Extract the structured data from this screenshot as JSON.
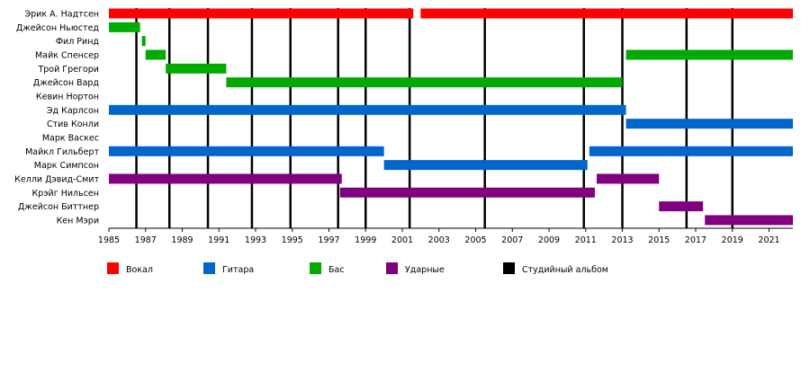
{
  "chart_data": {
    "type": "timeline",
    "title": "",
    "xlabel": "",
    "ylabel": "",
    "xlim": [
      1985,
      2022.3
    ],
    "x_ticks": [
      1985,
      1987,
      1989,
      1991,
      1993,
      1995,
      1997,
      1999,
      2001,
      2003,
      2005,
      2007,
      2009,
      2011,
      2013,
      2015,
      2017,
      2019,
      2021
    ],
    "grid": false,
    "legend_position": "bottom",
    "members": [
      "Эрик А. Надтсен",
      "Джейсон Ньюстед",
      "Фил Ринд",
      "Майк Спенсер",
      "Трой Грегори",
      "Джейсон Вард",
      "Кевин Нортон",
      "Эд Карлсон",
      "Стив Конли",
      "Марк Васкес",
      "Майкл Гильберт",
      "Марк Симпсон",
      "Келли Дэвид-Смит",
      "Крэйг Нильсен",
      "Джейсон Биттнер",
      "Кен Мэри"
    ],
    "roles": [
      {
        "key": "vocals",
        "name": "Вокал",
        "color": "#ff0000"
      },
      {
        "key": "guitar",
        "name": "Гитара",
        "color": "#0066cc"
      },
      {
        "key": "bass",
        "name": "Бас",
        "color": "#00aa00"
      },
      {
        "key": "drums",
        "name": "Ударные",
        "color": "#800080"
      },
      {
        "key": "album",
        "name": "Студийный альбом",
        "color": "#000000"
      }
    ],
    "bars": [
      {
        "member": 0,
        "role": "vocals",
        "start": 1985.0,
        "end": 2001.6
      },
      {
        "member": 0,
        "role": "vocals",
        "start": 2002.0,
        "end": 2022.3
      },
      {
        "member": 1,
        "role": "bass",
        "start": 1985.0,
        "end": 1986.7
      },
      {
        "member": 2,
        "role": "bass",
        "start": 1986.8,
        "end": 1987.0
      },
      {
        "member": 3,
        "role": "bass",
        "start": 1987.0,
        "end": 1988.1
      },
      {
        "member": 3,
        "role": "bass",
        "start": 2013.2,
        "end": 2022.3
      },
      {
        "member": 4,
        "role": "bass",
        "start": 1988.1,
        "end": 1991.4
      },
      {
        "member": 5,
        "role": "bass",
        "start": 1991.4,
        "end": 2013.0
      },
      {
        "member": 7,
        "role": "guitar",
        "start": 1985.0,
        "end": 2013.2
      },
      {
        "member": 8,
        "role": "guitar",
        "start": 2013.2,
        "end": 2022.3
      },
      {
        "member": 10,
        "role": "guitar",
        "start": 1985.0,
        "end": 2000.0
      },
      {
        "member": 10,
        "role": "guitar",
        "start": 2011.2,
        "end": 2022.3
      },
      {
        "member": 11,
        "role": "guitar",
        "start": 2000.0,
        "end": 2011.1
      },
      {
        "member": 12,
        "role": "drums",
        "start": 1985.0,
        "end": 1997.7
      },
      {
        "member": 12,
        "role": "drums",
        "start": 2011.6,
        "end": 2015.0
      },
      {
        "member": 13,
        "role": "drums",
        "start": 1997.6,
        "end": 2011.5
      },
      {
        "member": 14,
        "role": "drums",
        "start": 2015.0,
        "end": 2017.4
      },
      {
        "member": 15,
        "role": "drums",
        "start": 2017.5,
        "end": 2022.3
      }
    ],
    "albums": [
      1986.5,
      1988.3,
      1990.4,
      1992.8,
      1994.9,
      1997.5,
      1999.0,
      2001.4,
      2005.5,
      2010.9,
      2013.0,
      2016.5,
      2019.0
    ]
  }
}
